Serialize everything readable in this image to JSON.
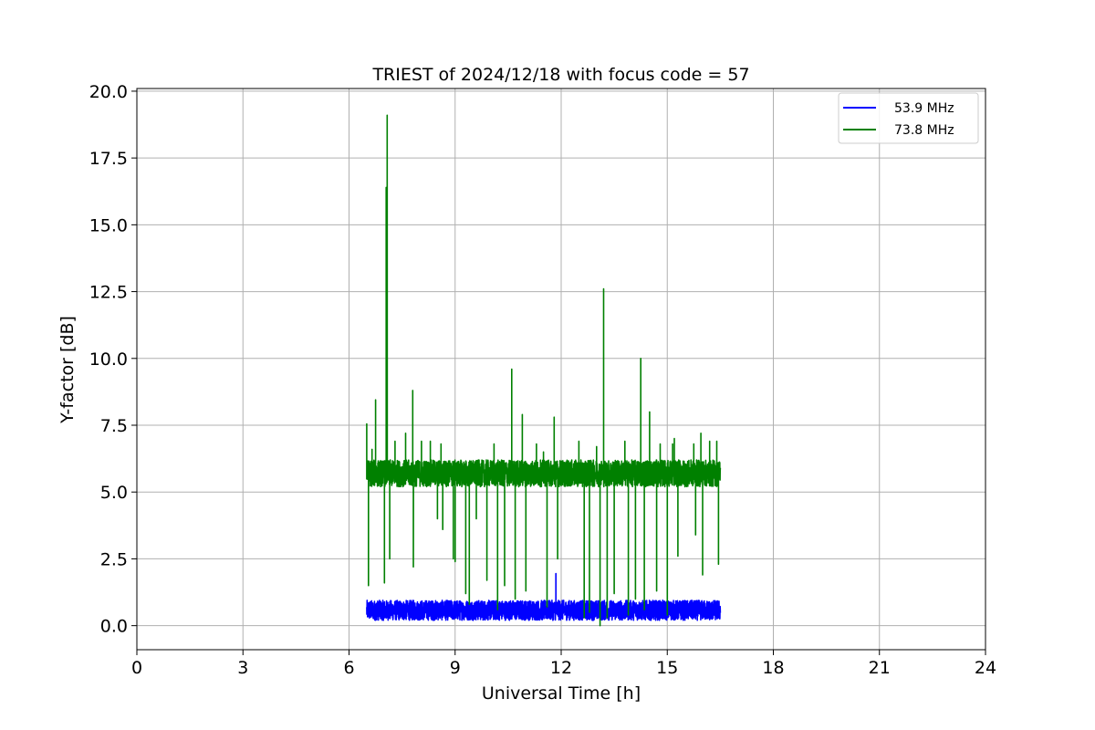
{
  "chart_data": {
    "type": "line",
    "title": "TRIEST of 2024/12/18 with focus code = 57",
    "xlabel": "Universal Time [h]",
    "ylabel": "Y-factor [dB]",
    "xlim": [
      0,
      24
    ],
    "ylim": [
      -0.9,
      20.1
    ],
    "xticks": [
      0,
      3,
      6,
      9,
      12,
      15,
      18,
      21,
      24
    ],
    "yticks": [
      0.0,
      2.5,
      5.0,
      7.5,
      10.0,
      12.5,
      15.0,
      17.5,
      20.0
    ],
    "xtick_labels": [
      "0",
      "3",
      "6",
      "9",
      "12",
      "15",
      "18",
      "21",
      "24"
    ],
    "ytick_labels": [
      "0.0",
      "2.5",
      "5.0",
      "7.5",
      "10.0",
      "12.5",
      "15.0",
      "17.5",
      "20.0"
    ],
    "grid": true,
    "legend_position": "top-right",
    "series": [
      {
        "name": "53.9 MHz",
        "color": "#0000ff",
        "x_range": [
          6.5,
          16.5
        ],
        "baseline": 0.55,
        "band": [
          0.2,
          0.95
        ],
        "spikes": [
          [
            11.85,
            1.95
          ]
        ]
      },
      {
        "name": "73.8 MHz",
        "color": "#008000",
        "x_range": [
          6.5,
          16.5
        ],
        "baseline": 5.75,
        "band": [
          5.2,
          6.2
        ],
        "spikes": [
          [
            6.5,
            7.55
          ],
          [
            6.55,
            1.5
          ],
          [
            6.65,
            6.6
          ],
          [
            6.75,
            8.45
          ],
          [
            7.0,
            1.6
          ],
          [
            7.05,
            16.4
          ],
          [
            7.08,
            19.1
          ],
          [
            7.15,
            2.5
          ],
          [
            7.3,
            6.9
          ],
          [
            7.6,
            7.2
          ],
          [
            7.8,
            8.8
          ],
          [
            7.82,
            2.2
          ],
          [
            8.05,
            6.9
          ],
          [
            8.3,
            6.9
          ],
          [
            8.5,
            4.0
          ],
          [
            8.6,
            6.8
          ],
          [
            8.65,
            3.6
          ],
          [
            8.95,
            2.5
          ],
          [
            9.0,
            2.4
          ],
          [
            9.3,
            1.2
          ],
          [
            9.4,
            0.8
          ],
          [
            9.6,
            4.0
          ],
          [
            9.9,
            1.7
          ],
          [
            10.1,
            6.8
          ],
          [
            10.2,
            0.6
          ],
          [
            10.4,
            1.5
          ],
          [
            10.6,
            9.6
          ],
          [
            10.7,
            1.0
          ],
          [
            10.8,
            5.2
          ],
          [
            10.9,
            7.9
          ],
          [
            11.0,
            1.3
          ],
          [
            11.3,
            6.8
          ],
          [
            11.5,
            6.5
          ],
          [
            11.6,
            0.7
          ],
          [
            11.8,
            7.8
          ],
          [
            11.9,
            2.5
          ],
          [
            12.5,
            6.9
          ],
          [
            12.65,
            0.3
          ],
          [
            12.8,
            0.5
          ],
          [
            13.0,
            6.7
          ],
          [
            13.1,
            0.0
          ],
          [
            13.2,
            12.6
          ],
          [
            13.3,
            0.3
          ],
          [
            13.5,
            1.2
          ],
          [
            13.8,
            6.9
          ],
          [
            13.9,
            0.4
          ],
          [
            14.1,
            1.0
          ],
          [
            14.25,
            10.0
          ],
          [
            14.35,
            0.6
          ],
          [
            14.5,
            8.0
          ],
          [
            14.7,
            1.3
          ],
          [
            14.8,
            6.8
          ],
          [
            15.0,
            0.4
          ],
          [
            15.15,
            6.8
          ],
          [
            15.2,
            7.0
          ],
          [
            15.3,
            2.6
          ],
          [
            15.5,
            5.2
          ],
          [
            15.75,
            6.8
          ],
          [
            15.8,
            3.4
          ],
          [
            15.95,
            7.2
          ],
          [
            16.0,
            1.9
          ],
          [
            16.2,
            6.9
          ],
          [
            16.4,
            6.9
          ],
          [
            16.45,
            2.3
          ]
        ]
      }
    ]
  }
}
